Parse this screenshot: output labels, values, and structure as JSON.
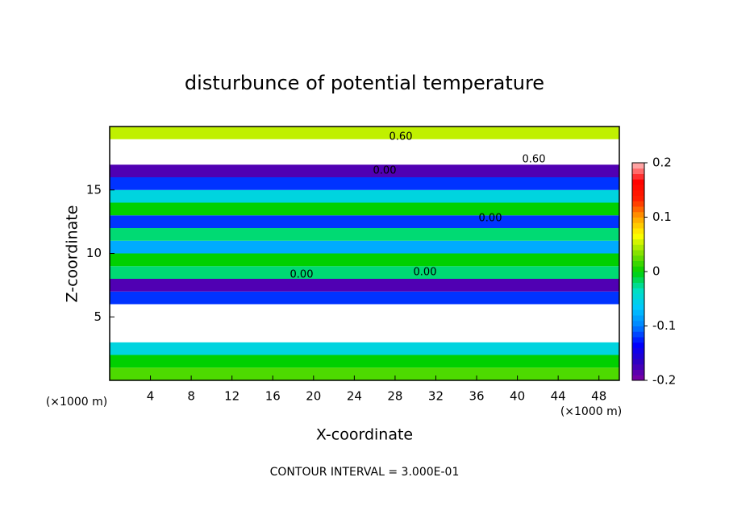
{
  "chart_data": {
    "type": "banded-heatmap",
    "title": "disturbunce of potential temperature",
    "x_label": "X-coordinate",
    "y_label": "Z-coordinate",
    "x_unit_label": "(×1000 m)",
    "y_unit_label": "(×1000 m)",
    "footer": "CONTOUR INTERVAL = 3.000E-01",
    "z": [
      0.5,
      1.5,
      2.5,
      3.5,
      4.5,
      5.5,
      6.5,
      7.5,
      8.5,
      9.5,
      10.5,
      11.5,
      12.5,
      13.5,
      14.5,
      15.5,
      16.5,
      17.5,
      18.5,
      19.5
    ],
    "values": [
      0.02,
      0.0,
      -0.05,
      -0.3,
      -0.3,
      -0.3,
      -0.12,
      -0.18,
      -0.02,
      0.0,
      -0.08,
      -0.02,
      -0.12,
      0.0,
      -0.05,
      -0.12,
      -0.18,
      0.3,
      0.3,
      0.05
    ],
    "annotations": [
      "0.60",
      "0.00",
      "0.60",
      "0.00",
      "0.00",
      "0.00"
    ],
    "xlim": [
      0,
      50
    ],
    "xticks": [
      4,
      8,
      12,
      16,
      20,
      24,
      28,
      32,
      36,
      40,
      44,
      48
    ],
    "ylim": [
      0,
      20
    ],
    "yticks": [
      5,
      10,
      15
    ],
    "clim": [
      -0.2,
      0.2
    ],
    "cticks": [
      0.2,
      0.1,
      0,
      -0.1,
      -0.2
    ],
    "colormap": [
      "#8000a0",
      "#3000c0",
      "#0000ff",
      "#0080ff",
      "#00c8ff",
      "#00e0c0",
      "#00d000",
      "#80e000",
      "#ffff00",
      "#ffa000",
      "#ff2000",
      "#ff0000",
      "#ffc0c0"
    ]
  }
}
